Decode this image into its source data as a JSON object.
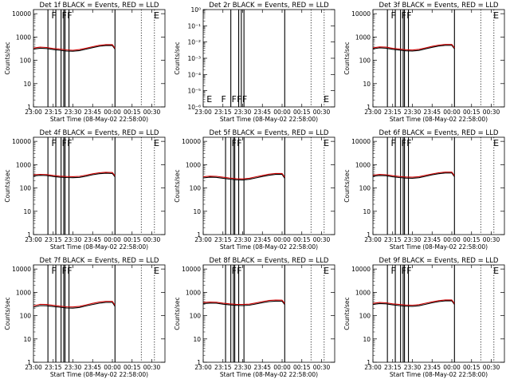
{
  "figure": {
    "background": "#ffffff",
    "foreground": "#000000",
    "lld_color": "#cc0000",
    "xlabel": "Start Time (08-May-02 22:58:00)",
    "ylabel": "Counts/sec"
  },
  "chart_data": [
    {
      "type": "line",
      "title": "Det 1f BLACK = Events, RED = LLD",
      "xlabel": "Start Time (08-May-02 22:58:00)",
      "ylabel": "Counts/sec",
      "x_tick_labels": [
        "23:00",
        "23:15",
        "23:30",
        "23:45",
        "00:00",
        "00:15",
        "00:30"
      ],
      "y_tick_labels": [
        "1",
        "10",
        "100",
        "1000",
        "10000"
      ],
      "ylim": [
        1,
        15000
      ],
      "xlim_minutes": [
        0,
        100
      ],
      "x_minutes": [
        0,
        5,
        10,
        15,
        20,
        25,
        30,
        35,
        40,
        45,
        50,
        55,
        60,
        62
      ],
      "series": [
        {
          "name": "Events",
          "color": "#000000",
          "values": [
            300,
            330,
            320,
            290,
            270,
            250,
            245,
            260,
            300,
            350,
            400,
            430,
            430,
            300
          ]
        },
        {
          "name": "LLD",
          "color": "#cc0000",
          "values": [
            335,
            365,
            355,
            320,
            300,
            280,
            270,
            290,
            330,
            385,
            440,
            470,
            470,
            330
          ]
        }
      ],
      "solid_markers_minutes": [
        11,
        17,
        21,
        23,
        24,
        27,
        62
      ],
      "dotted_markers_minutes": [
        82,
        92
      ],
      "flags": [
        {
          "text": "F",
          "at_minute": 13
        },
        {
          "text": "F",
          "at_minute": 21
        },
        {
          "text": "F",
          "at_minute": 25
        },
        {
          "text": "E",
          "at_minute": 91
        }
      ]
    },
    {
      "type": "line",
      "title": "Det 2r BLACK = Events, RED = LLD",
      "xlabel": "Start Time (08-May-02 22:58:00)",
      "ylabel": "Counts/sec",
      "x_tick_labels": [
        "23:00",
        "23:15",
        "23:30",
        "23:45",
        "00:00",
        "00:15",
        "00:30"
      ],
      "y_tick_labels": [
        "10⁻⁶",
        "10⁻⁵",
        "10⁻⁴",
        "10⁻³",
        "10⁻²",
        "10⁻¹",
        "10⁰"
      ],
      "ylim": [
        1e-06,
        1
      ],
      "xlim_minutes": [
        0,
        100
      ],
      "x_minutes": [],
      "series": [],
      "solid_markers_minutes": [
        21,
        27,
        29,
        31,
        62
      ],
      "dotted_markers_minutes": [
        82,
        92
      ],
      "flags": [
        {
          "text": "E",
          "at_minute": 2
        },
        {
          "text": "F",
          "at_minute": 13
        },
        {
          "text": "F",
          "at_minute": 21
        },
        {
          "text": "F",
          "at_minute": 25
        },
        {
          "text": "F",
          "at_minute": 29
        },
        {
          "text": "E",
          "at_minute": 91
        }
      ]
    },
    {
      "type": "line",
      "title": "Det 3f BLACK = Events, RED = LLD",
      "xlabel": "Start Time (08-May-02 22:58:00)",
      "ylabel": "Counts/sec",
      "x_tick_labels": [
        "23:00",
        "23:15",
        "23:30",
        "23:45",
        "00:00",
        "00:15",
        "00:30"
      ],
      "y_tick_labels": [
        "1",
        "10",
        "100",
        "1000",
        "10000"
      ],
      "ylim": [
        1,
        15000
      ],
      "xlim_minutes": [
        0,
        100
      ],
      "x_minutes": [
        0,
        5,
        10,
        15,
        20,
        25,
        30,
        35,
        40,
        45,
        50,
        55,
        60,
        62
      ],
      "series": [
        {
          "name": "Events",
          "color": "#000000",
          "values": [
            310,
            340,
            330,
            295,
            275,
            255,
            250,
            265,
            310,
            360,
            410,
            440,
            440,
            310
          ]
        },
        {
          "name": "LLD",
          "color": "#cc0000",
          "values": [
            345,
            375,
            365,
            325,
            305,
            285,
            275,
            295,
            340,
            395,
            450,
            480,
            480,
            340
          ]
        }
      ],
      "solid_markers_minutes": [
        11,
        17,
        21,
        23,
        24,
        27,
        62
      ],
      "dotted_markers_minutes": [
        82,
        92
      ],
      "flags": [
        {
          "text": "F",
          "at_minute": 13
        },
        {
          "text": "F",
          "at_minute": 21
        },
        {
          "text": "F",
          "at_minute": 25
        },
        {
          "text": "E",
          "at_minute": 91
        }
      ]
    },
    {
      "type": "line",
      "title": "Det 4f BLACK = Events, RED = LLD",
      "xlabel": "Start Time (08-May-02 22:58:00)",
      "ylabel": "Counts/sec",
      "x_tick_labels": [
        "23:00",
        "23:15",
        "23:30",
        "23:45",
        "00:00",
        "00:15",
        "00:30"
      ],
      "y_tick_labels": [
        "1",
        "10",
        "100",
        "1000",
        "10000"
      ],
      "ylim": [
        1,
        15000
      ],
      "xlim_minutes": [
        0,
        100
      ],
      "x_minutes": [
        0,
        5,
        10,
        15,
        20,
        25,
        30,
        35,
        40,
        45,
        50,
        55,
        60,
        62
      ],
      "series": [
        {
          "name": "Events",
          "color": "#000000",
          "values": [
            330,
            350,
            340,
            310,
            290,
            280,
            275,
            285,
            320,
            370,
            410,
            430,
            420,
            300
          ]
        },
        {
          "name": "LLD",
          "color": "#cc0000",
          "values": [
            365,
            385,
            375,
            345,
            320,
            310,
            305,
            315,
            355,
            405,
            450,
            470,
            460,
            330
          ]
        }
      ],
      "solid_markers_minutes": [
        11,
        17,
        21,
        23,
        24,
        27,
        62
      ],
      "dotted_markers_minutes": [
        82,
        92
      ],
      "flags": [
        {
          "text": "F",
          "at_minute": 13
        },
        {
          "text": "F",
          "at_minute": 21
        },
        {
          "text": "F",
          "at_minute": 25
        },
        {
          "text": "E",
          "at_minute": 91
        }
      ]
    },
    {
      "type": "line",
      "title": "Det 5f BLACK = Events, RED = LLD",
      "xlabel": "Start Time (08-May-02 22:58:00)",
      "ylabel": "Counts/sec",
      "x_tick_labels": [
        "23:00",
        "23:15",
        "23:30",
        "23:45",
        "00:00",
        "00:15",
        "00:30"
      ],
      "y_tick_labels": [
        "1",
        "10",
        "100",
        "1000",
        "10000"
      ],
      "ylim": [
        1,
        15000
      ],
      "xlim_minutes": [
        0,
        100
      ],
      "x_minutes": [
        0,
        5,
        10,
        15,
        20,
        25,
        30,
        35,
        40,
        45,
        50,
        55,
        60,
        62
      ],
      "series": [
        {
          "name": "Events",
          "color": "#000000",
          "values": [
            270,
            290,
            285,
            260,
            240,
            225,
            220,
            235,
            270,
            310,
            350,
            380,
            380,
            260
          ]
        },
        {
          "name": "LLD",
          "color": "#cc0000",
          "values": [
            300,
            320,
            315,
            290,
            265,
            250,
            245,
            260,
            300,
            345,
            390,
            420,
            420,
            290
          ]
        }
      ],
      "solid_markers_minutes": [
        17,
        21,
        23,
        24,
        27,
        31,
        62
      ],
      "dotted_markers_minutes": [
        82,
        92
      ],
      "flags": [
        {
          "text": "F",
          "at_minute": 21
        },
        {
          "text": "F",
          "at_minute": 25
        },
        {
          "text": "E",
          "at_minute": 91
        }
      ]
    },
    {
      "type": "line",
      "title": "Det 6f BLACK = Events, RED = LLD",
      "xlabel": "Start Time (08-May-02 22:58:00)",
      "ylabel": "Counts/sec",
      "x_tick_labels": [
        "23:00",
        "23:15",
        "23:30",
        "23:45",
        "00:00",
        "00:15",
        "00:30"
      ],
      "y_tick_labels": [
        "1",
        "10",
        "100",
        "1000",
        "10000"
      ],
      "ylim": [
        1,
        15000
      ],
      "xlim_minutes": [
        0,
        100
      ],
      "x_minutes": [
        0,
        5,
        10,
        15,
        20,
        25,
        30,
        35,
        40,
        45,
        50,
        55,
        60,
        62
      ],
      "series": [
        {
          "name": "Events",
          "color": "#000000",
          "values": [
            320,
            345,
            335,
            300,
            280,
            265,
            260,
            275,
            315,
            365,
            410,
            440,
            440,
            305
          ]
        },
        {
          "name": "LLD",
          "color": "#cc0000",
          "values": [
            355,
            380,
            370,
            335,
            310,
            295,
            290,
            305,
            350,
            400,
            450,
            480,
            480,
            335
          ]
        }
      ],
      "solid_markers_minutes": [
        11,
        17,
        21,
        23,
        24,
        27,
        62
      ],
      "dotted_markers_minutes": [
        82,
        92
      ],
      "flags": [
        {
          "text": "F",
          "at_minute": 13
        },
        {
          "text": "F",
          "at_minute": 21
        },
        {
          "text": "F",
          "at_minute": 25
        },
        {
          "text": "E",
          "at_minute": 91
        }
      ]
    },
    {
      "type": "line",
      "title": "Det 7f BLACK = Events, RED = LLD",
      "xlabel": "Start Time (08-May-02 22:58:00)",
      "ylabel": "Counts/sec",
      "x_tick_labels": [
        "23:00",
        "23:15",
        "23:30",
        "23:45",
        "00:00",
        "00:15",
        "00:30"
      ],
      "y_tick_labels": [
        "1",
        "10",
        "100",
        "1000",
        "10000"
      ],
      "ylim": [
        1,
        15000
      ],
      "xlim_minutes": [
        0,
        100
      ],
      "x_minutes": [
        0,
        5,
        10,
        15,
        20,
        25,
        30,
        35,
        40,
        45,
        50,
        55,
        60,
        62
      ],
      "series": [
        {
          "name": "Events",
          "color": "#000000",
          "values": [
            230,
            270,
            265,
            245,
            230,
            215,
            210,
            225,
            260,
            300,
            340,
            370,
            370,
            250
          ]
        },
        {
          "name": "LLD",
          "color": "#cc0000",
          "values": [
            260,
            305,
            300,
            275,
            255,
            240,
            235,
            250,
            290,
            335,
            380,
            410,
            410,
            280
          ]
        }
      ],
      "solid_markers_minutes": [
        11,
        17,
        21,
        23,
        24,
        27,
        62
      ],
      "dotted_markers_minutes": [
        82,
        92
      ],
      "flags": [
        {
          "text": "F",
          "at_minute": 13
        },
        {
          "text": "F",
          "at_minute": 21
        },
        {
          "text": "F",
          "at_minute": 25
        },
        {
          "text": "E",
          "at_minute": 91
        }
      ]
    },
    {
      "type": "line",
      "title": "Det 8f BLACK = Events, RED = LLD",
      "xlabel": "Start Time (08-May-02 22:58:00)",
      "ylabel": "Counts/sec",
      "x_tick_labels": [
        "23:00",
        "23:15",
        "23:30",
        "23:45",
        "00:00",
        "00:15",
        "00:30"
      ],
      "y_tick_labels": [
        "1",
        "10",
        "100",
        "1000",
        "10000"
      ],
      "ylim": [
        1,
        15000
      ],
      "xlim_minutes": [
        0,
        100
      ],
      "x_minutes": [
        0,
        5,
        10,
        15,
        20,
        25,
        30,
        35,
        40,
        45,
        50,
        55,
        60,
        62
      ],
      "series": [
        {
          "name": "Events",
          "color": "#000000",
          "values": [
            330,
            345,
            340,
            310,
            290,
            275,
            270,
            280,
            315,
            360,
            400,
            420,
            415,
            300
          ]
        },
        {
          "name": "LLD",
          "color": "#cc0000",
          "values": [
            365,
            380,
            375,
            345,
            320,
            305,
            300,
            310,
            350,
            400,
            445,
            465,
            460,
            330
          ]
        }
      ],
      "solid_markers_minutes": [
        17,
        21,
        23,
        24,
        27,
        31,
        62
      ],
      "dotted_markers_minutes": [
        82,
        92
      ],
      "flags": [
        {
          "text": "F",
          "at_minute": 21
        },
        {
          "text": "F",
          "at_minute": 25
        },
        {
          "text": "E",
          "at_minute": 91
        }
      ]
    },
    {
      "type": "line",
      "title": "Det 9f BLACK = Events, RED = LLD",
      "xlabel": "Start Time (08-May-02 22:58:00)",
      "ylabel": "Counts/sec",
      "x_tick_labels": [
        "23:00",
        "23:15",
        "23:30",
        "23:45",
        "00:00",
        "00:15",
        "00:30"
      ],
      "y_tick_labels": [
        "1",
        "10",
        "100",
        "1000",
        "10000"
      ],
      "ylim": [
        1,
        15000
      ],
      "xlim_minutes": [
        0,
        100
      ],
      "x_minutes": [
        0,
        5,
        10,
        15,
        20,
        25,
        30,
        35,
        40,
        45,
        50,
        55,
        60,
        62
      ],
      "series": [
        {
          "name": "Events",
          "color": "#000000",
          "values": [
            300,
            330,
            320,
            290,
            270,
            255,
            250,
            265,
            305,
            355,
            400,
            430,
            430,
            300
          ]
        },
        {
          "name": "LLD",
          "color": "#cc0000",
          "values": [
            335,
            365,
            355,
            320,
            300,
            285,
            280,
            295,
            340,
            390,
            440,
            470,
            470,
            330
          ]
        }
      ],
      "solid_markers_minutes": [
        11,
        17,
        21,
        23,
        24,
        27,
        62
      ],
      "dotted_markers_minutes": [
        82,
        92
      ],
      "flags": [
        {
          "text": "F",
          "at_minute": 13
        },
        {
          "text": "F",
          "at_minute": 21
        },
        {
          "text": "F",
          "at_minute": 25
        },
        {
          "text": "E",
          "at_minute": 91
        }
      ]
    }
  ]
}
